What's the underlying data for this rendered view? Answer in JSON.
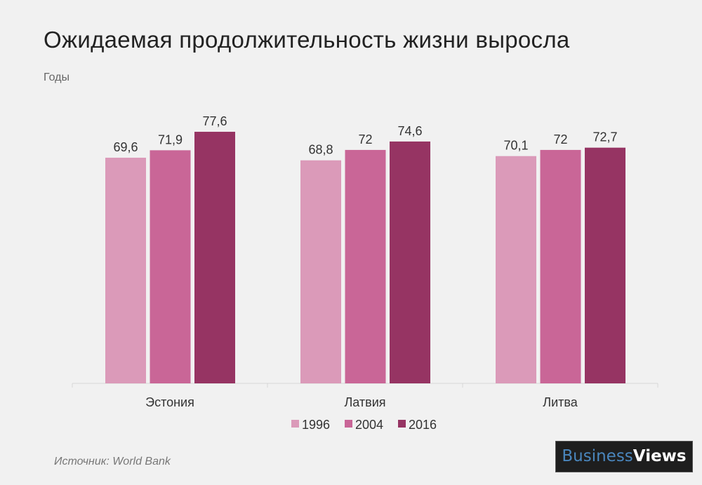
{
  "title": "Ожидаемая продолжительность жизни выросла",
  "unit_label": "Годы",
  "source": "Источник: World Bank",
  "logo": {
    "part1": "Business",
    "part2": "Views"
  },
  "chart_data": {
    "type": "bar",
    "title": "Ожидаемая продолжительность жизни выросла",
    "ylabel": "Годы",
    "categories": [
      "Эстония",
      "Латвия",
      "Литва"
    ],
    "series": [
      {
        "name": "1996",
        "color": "#db9ab9",
        "values": [
          69.6,
          68.8,
          70.1
        ],
        "labels": [
          "69,6",
          "68,8",
          "70,1"
        ]
      },
      {
        "name": "2004",
        "color": "#c96697",
        "values": [
          71.9,
          72,
          72
        ],
        "labels": [
          "71,9",
          "72",
          "72"
        ]
      },
      {
        "name": "2016",
        "color": "#963463",
        "values": [
          77.6,
          74.6,
          72.7
        ],
        "labels": [
          "77,6",
          "74,6",
          "72,7"
        ]
      }
    ],
    "ylim": [
      0,
      80
    ],
    "grid": false,
    "legend": "bottom"
  }
}
